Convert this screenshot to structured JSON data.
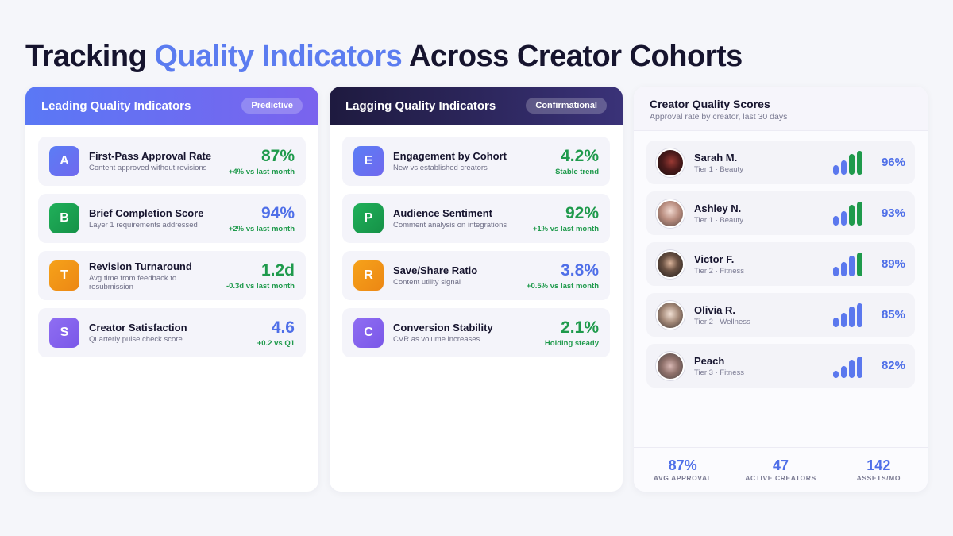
{
  "title": {
    "part1": "Tracking ",
    "highlight": "Quality Indicators",
    "part2": " Across Creator Cohorts"
  },
  "leading": {
    "heading": "Leading Quality Indicators",
    "pill": "Predictive",
    "items": [
      {
        "badge": "A",
        "color": "blue",
        "title": "First-Pass Approval Rate",
        "sub": "Content approved without revisions",
        "value": "87%",
        "value_color": "green",
        "delta": "+4% vs last month"
      },
      {
        "badge": "B",
        "color": "green",
        "title": "Brief Completion Score",
        "sub": "Layer 1 requirements addressed",
        "value": "94%",
        "value_color": "blue",
        "delta": "+2% vs last month"
      },
      {
        "badge": "T",
        "color": "orange",
        "title": "Revision Turnaround",
        "sub": "Avg time from feedback to resubmission",
        "value": "1.2d",
        "value_color": "green",
        "delta": "-0.3d vs last month"
      },
      {
        "badge": "S",
        "color": "purple",
        "title": "Creator Satisfaction",
        "sub": "Quarterly pulse check score",
        "value": "4.6",
        "value_color": "blue",
        "delta": "+0.2 vs Q1"
      }
    ]
  },
  "lagging": {
    "heading": "Lagging Quality Indicators",
    "pill": "Confirmational",
    "items": [
      {
        "badge": "E",
        "color": "blue",
        "title": "Engagement by Cohort",
        "sub": "New vs established creators",
        "value": "4.2%",
        "value_color": "green",
        "delta": "Stable trend"
      },
      {
        "badge": "P",
        "color": "green",
        "title": "Audience Sentiment",
        "sub": "Comment analysis on integrations",
        "value": "92%",
        "value_color": "green",
        "delta": "+1% vs last month"
      },
      {
        "badge": "R",
        "color": "orange",
        "title": "Save/Share Ratio",
        "sub": "Content utility signal",
        "value": "3.8%",
        "value_color": "blue",
        "delta": "+0.5% vs last month"
      },
      {
        "badge": "C",
        "color": "purple",
        "title": "Conversion Stability",
        "sub": "CVR as volume increases",
        "value": "2.1%",
        "value_color": "green",
        "delta": "Holding steady"
      }
    ]
  },
  "scores": {
    "heading": "Creator Quality Scores",
    "subheading": "Approval rate by creator, last 30 days",
    "creators": [
      {
        "name": "Sarah M.",
        "tier": "Tier 1 · Beauty",
        "pct": "96%",
        "approval": 0.96,
        "bar_levels": [
          0.4,
          0.6,
          0.87,
          1.0
        ],
        "bar_colors": [
          "blue",
          "blue",
          "green",
          "green"
        ]
      },
      {
        "name": "Ashley N.",
        "tier": "Tier 1 · Beauty",
        "pct": "93%",
        "approval": 0.93,
        "bar_levels": [
          0.4,
          0.6,
          0.87,
          1.0
        ],
        "bar_colors": [
          "blue",
          "blue",
          "green",
          "green"
        ]
      },
      {
        "name": "Victor F.",
        "tier": "Tier 2 · Fitness",
        "pct": "89%",
        "approval": 0.89,
        "bar_levels": [
          0.4,
          0.6,
          0.87,
          1.0
        ],
        "bar_colors": [
          "blue",
          "blue",
          "blue",
          "green"
        ]
      },
      {
        "name": "Olivia R.",
        "tier": "Tier 2 · Wellness",
        "pct": "85%",
        "approval": 0.85,
        "bar_levels": [
          0.4,
          0.6,
          0.87,
          1.0
        ],
        "bar_colors": [
          "blue",
          "blue",
          "blue",
          "blue"
        ]
      },
      {
        "name": "Peach",
        "tier": "Tier 3 · Fitness",
        "pct": "82%",
        "approval": 0.82,
        "bar_levels": [
          0.3,
          0.5,
          0.75,
          0.9
        ],
        "bar_colors": [
          "blue",
          "blue",
          "blue",
          "blue"
        ]
      }
    ],
    "stats": [
      {
        "value": "87%",
        "label": "AVG APPROVAL"
      },
      {
        "value": "47",
        "label": "ACTIVE CREATORS"
      },
      {
        "value": "142",
        "label": "ASSETS/MO"
      }
    ]
  },
  "colors": {
    "accent": "#5b7cf0",
    "green": "#1f9a4c",
    "dark": "#16142e"
  }
}
